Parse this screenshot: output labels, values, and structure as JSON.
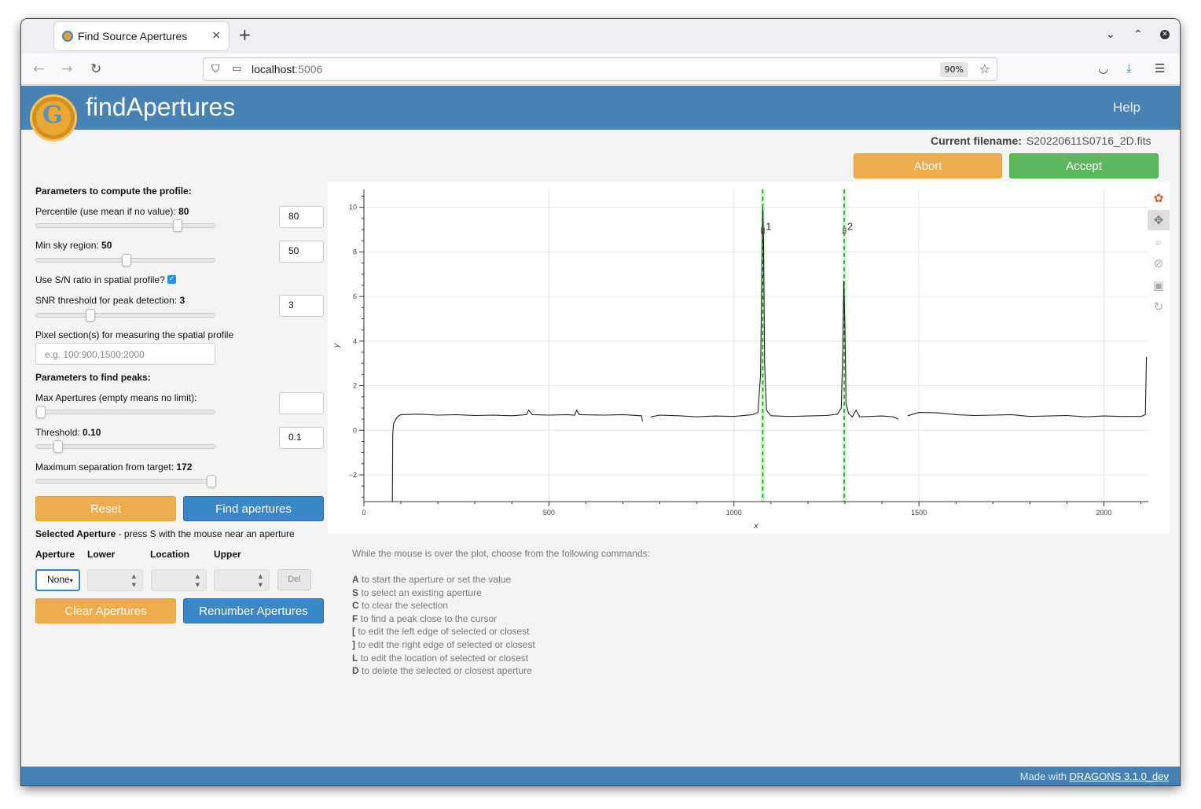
{
  "browser": {
    "tab_title": "Find Source Apertures",
    "tab_close": "×",
    "new_tab": "+",
    "url_host": "localhost",
    "url_port": ":5006",
    "zoom": "90%"
  },
  "app": {
    "title": "findApertures",
    "help": "Help",
    "filename_label": "Current filename:",
    "filename": "S20220611S0716_2D.fits",
    "abort": "Abort",
    "accept": "Accept"
  },
  "profile": {
    "heading": "Parameters to compute the profile:",
    "percentile_label": "Percentile (use mean if no value): ",
    "percentile_value": "80",
    "percentile_input": "80",
    "percentile_fraction": 0.8,
    "minsky_label": "Min sky region: ",
    "minsky_value": "50",
    "minsky_input": "50",
    "minsky_fraction": 0.5,
    "use_snr_label": "Use S/N ratio in spatial profile?",
    "use_snr_checked": true,
    "snr_label": "SNR threshold for peak detection: ",
    "snr_value": "3",
    "snr_input": "3",
    "snr_fraction": 0.29,
    "section_label": "Pixel section(s) for measuring the spatial profile",
    "section_placeholder": "e.g. 100:900,1500:2000"
  },
  "peaks": {
    "heading": "Parameters to find peaks:",
    "maxap_label": "Max Apertures (empty means no limit):",
    "maxap_input": "",
    "maxap_fraction": 0.0,
    "threshold_label": "Threshold: ",
    "threshold_value": "0.10",
    "threshold_input": "0.1",
    "threshold_fraction": 0.1,
    "maxsep_label": "Maximum separation from target: ",
    "maxsep_value": "172",
    "maxsep_fraction": 1.0
  },
  "actions": {
    "reset": "Reset",
    "find": "Find apertures",
    "clear": "Clear Apertures",
    "renumber": "Renumber Apertures"
  },
  "selected": {
    "heading_bold": "Selected Aperture",
    "heading_rest": " - press S with the mouse near an aperture",
    "col_aperture": "Aperture",
    "col_lower": "Lower",
    "col_location": "Location",
    "col_upper": "Upper",
    "aperture_value": "None",
    "del": "Del"
  },
  "help_commands": {
    "intro": "While the mouse is over the plot, choose from the following commands:",
    "items": [
      {
        "key": "A",
        "text": " to start the aperture or set the value"
      },
      {
        "key": "S",
        "text": " to select an existing aperture"
      },
      {
        "key": "C",
        "text": " to clear the selection"
      },
      {
        "key": "F",
        "text": " to find a peak close to the cursor"
      },
      {
        "key": "[",
        "text": " to edit the left edge of selected or closest"
      },
      {
        "key": "]",
        "text": " to edit the right edge of selected or closest"
      },
      {
        "key": "L",
        "text": " to edit the location of selected or closest"
      },
      {
        "key": "D",
        "text": " to delete the selected or closest aperture"
      }
    ]
  },
  "footer": {
    "made_with": "Made with ",
    "link": "DRAGONS 3.1.0_dev"
  },
  "icons": [
    "firefox-tab-icon",
    "back-icon",
    "forward-icon",
    "reload-icon",
    "shield-icon",
    "page-icon",
    "star-icon",
    "pocket-icon",
    "download-icon",
    "menu-icon",
    "pan-icon",
    "box-zoom-icon",
    "wheel-zoom-icon",
    "save-icon",
    "reset-icon",
    "bokeh-logo-icon"
  ],
  "chart_data": {
    "type": "line",
    "title": "",
    "xlabel": "x",
    "ylabel": "y",
    "xlim": [
      0,
      2120
    ],
    "ylim": [
      -3.2,
      10.8
    ],
    "xticks": [
      0,
      500,
      1000,
      1500,
      2000
    ],
    "yticks": [
      -2,
      0,
      2,
      4,
      6,
      8,
      10
    ],
    "grid": true,
    "line_color": "#222222",
    "series": [
      {
        "segments": [
          [
            [
              77,
              -3.2
            ],
            [
              78,
              -0.2
            ],
            [
              80,
              0.3
            ],
            [
              90,
              0.6
            ],
            [
              100,
              0.7
            ],
            [
              150,
              0.72
            ],
            [
              200,
              0.68
            ],
            [
              250,
              0.7
            ],
            [
              300,
              0.66
            ],
            [
              350,
              0.68
            ],
            [
              400,
              0.65
            ],
            [
              440,
              0.7
            ],
            [
              445,
              0.9
            ],
            [
              455,
              0.7
            ],
            [
              500,
              0.68
            ],
            [
              550,
              0.7
            ],
            [
              570,
              0.68
            ],
            [
              575,
              0.9
            ],
            [
              582,
              0.7
            ],
            [
              650,
              0.68
            ],
            [
              700,
              0.7
            ],
            [
              750,
              0.65
            ],
            [
              753,
              0.4
            ]
          ],
          [
            [
              775,
              0.6
            ],
            [
              800,
              0.68
            ],
            [
              850,
              0.65
            ],
            [
              900,
              0.6
            ],
            [
              950,
              0.64
            ],
            [
              1000,
              0.62
            ],
            [
              1050,
              0.7
            ],
            [
              1065,
              0.8
            ],
            [
              1072,
              2.5
            ],
            [
              1076,
              7.5
            ],
            [
              1078,
              10.0
            ],
            [
              1080,
              8.5
            ],
            [
              1083,
              3.0
            ],
            [
              1088,
              0.9
            ],
            [
              1100,
              0.65
            ],
            [
              1150,
              0.62
            ],
            [
              1200,
              0.64
            ],
            [
              1250,
              0.66
            ],
            [
              1280,
              0.72
            ],
            [
              1290,
              1.0
            ],
            [
              1294,
              3.5
            ],
            [
              1297,
              6.7
            ],
            [
              1300,
              4.5
            ],
            [
              1303,
              1.2
            ],
            [
              1310,
              0.75
            ],
            [
              1320,
              0.6
            ],
            [
              1330,
              0.9
            ],
            [
              1340,
              0.6
            ],
            [
              1400,
              0.64
            ],
            [
              1430,
              0.6
            ],
            [
              1445,
              0.5
            ]
          ],
          [
            [
              1470,
              0.65
            ],
            [
              1500,
              0.8
            ],
            [
              1550,
              0.78
            ],
            [
              1600,
              0.7
            ],
            [
              1650,
              0.66
            ],
            [
              1700,
              0.68
            ],
            [
              1750,
              0.7
            ],
            [
              1800,
              0.62
            ],
            [
              1850,
              0.64
            ],
            [
              1900,
              0.66
            ],
            [
              1950,
              0.6
            ],
            [
              2000,
              0.64
            ],
            [
              2050,
              0.62
            ],
            [
              2100,
              0.62
            ],
            [
              2112,
              0.7
            ],
            [
              2115,
              3.3
            ]
          ]
        ]
      }
    ],
    "apertures": [
      {
        "label": "1",
        "location": 1078,
        "lower": 1072,
        "upper": 1084
      },
      {
        "label": "2",
        "location": 1298,
        "lower": 1293,
        "upper": 1304
      }
    ],
    "aperture_band_color": "#90ee90",
    "aperture_line_color": "#2e8b2e"
  }
}
